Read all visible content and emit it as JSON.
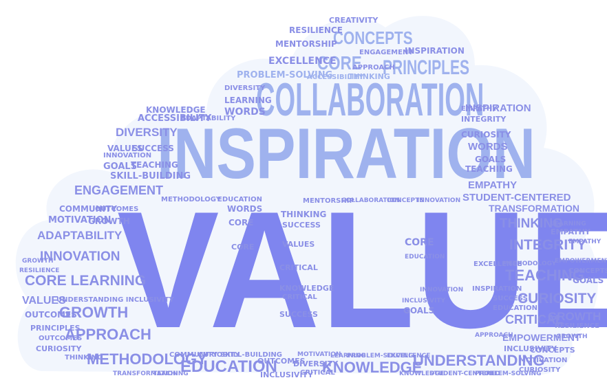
{
  "colors": {
    "background": "#ffffff",
    "cloud_fill": "#f2f6fd",
    "word_dark": "#8a8fe6",
    "word_mid": "#9fb2ee",
    "word_light": "#b9c9f4",
    "word_main": "#7f85ef"
  },
  "words": {
    "values_main": "VALUES",
    "inspiration": "INSPIRATION",
    "collaboration": "COLLABORATION",
    "concepts": "CONCEPTS",
    "core": "CORE",
    "principles": "PRINCIPLES",
    "resilience": "RESILIENCE",
    "creativity": "CREATIVITY",
    "mentorship": "MENTORSHIP",
    "excellence": "EXCELLENCE",
    "inspiration_small": "INSPIRATION",
    "approach": "APPROACH",
    "engagement": "ENGAGEMENT",
    "goals": "GOALS",
    "learning": "LEARNING",
    "diversity": "DIVERSITY",
    "problem_solving": "PROBLEM-SOLVING",
    "accessibility": "ACCESSIBILITY",
    "thinking": "THINKING",
    "words": "WORDS",
    "knowledge": "KNOWLEDGE",
    "adaptability": "ADAPTABILITY",
    "empathy": "EMPATHY",
    "integrity": "INTEGRITY",
    "curiosity": "CURIOSITY",
    "teaching": "TEACHING",
    "success": "SUCCESS",
    "innovation": "INNOVATION",
    "skill_building": "SKILL-BUILDING",
    "community": "COMMUNITY",
    "motivation": "MOTIVATION",
    "growth": "GROWTH",
    "outcomes": "OUTCOMES",
    "methodology": "METHODOLOGY",
    "education": "EDUCATION",
    "student_centered": "STUDENT-CENTERED",
    "transformation": "TRANSFORMATION",
    "empowerment": "EMPOWERMENT",
    "inclusivity": "INCLUSIVITY",
    "understanding": "UNDERSTANDING",
    "critical": "CRITICAL",
    "core_learning": "CORE LEARNING",
    "values_small": "VALUES",
    "understanding_inclusivity": "UNDERSTANDING INCLUSIVITY",
    "student_centered_lower": "STUDENT-CENTERED"
  }
}
